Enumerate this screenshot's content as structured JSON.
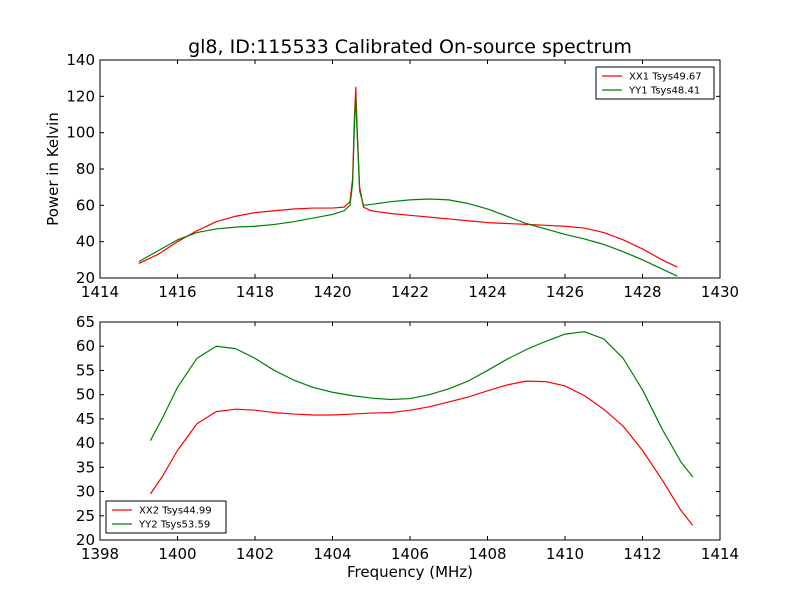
{
  "title": "gl8, ID:115533 Calibrated On-source spectrum",
  "chart_data": [
    {
      "type": "line",
      "ylabel": "Power in Kelvin",
      "xlabel": "",
      "xlim": [
        1414,
        1430
      ],
      "ylim": [
        20,
        140
      ],
      "xticks": [
        1414,
        1416,
        1418,
        1420,
        1422,
        1424,
        1426,
        1428,
        1430
      ],
      "yticks": [
        20,
        40,
        60,
        80,
        100,
        120,
        140
      ],
      "legend_position": "top-right",
      "series": [
        {
          "name": "XX1 Tsys49.67",
          "color": "#ff0000",
          "x": [
            1415.0,
            1415.5,
            1416.0,
            1416.5,
            1417.0,
            1417.5,
            1418.0,
            1418.5,
            1419.0,
            1419.5,
            1420.0,
            1420.3,
            1420.45,
            1420.52,
            1420.56,
            1420.6,
            1420.64,
            1420.7,
            1420.8,
            1421.0,
            1421.5,
            1422.0,
            1422.5,
            1423.0,
            1423.5,
            1424.0,
            1424.5,
            1425.0,
            1425.5,
            1426.0,
            1426.5,
            1427.0,
            1427.5,
            1428.0,
            1428.5,
            1428.9
          ],
          "values": [
            28,
            33,
            40,
            46,
            51,
            54,
            56,
            57,
            58,
            58.5,
            58.5,
            59,
            62,
            75,
            105,
            125,
            100,
            70,
            59,
            57,
            55.5,
            54.5,
            53.5,
            52.5,
            51.5,
            50.5,
            50,
            49.5,
            49,
            48.5,
            47.5,
            45,
            41,
            36,
            30,
            26
          ]
        },
        {
          "name": "YY1 Tsys48.41",
          "color": "#008000",
          "x": [
            1415.0,
            1415.5,
            1416.0,
            1416.5,
            1417.0,
            1417.5,
            1418.0,
            1418.5,
            1419.0,
            1419.5,
            1420.0,
            1420.3,
            1420.45,
            1420.52,
            1420.56,
            1420.6,
            1420.64,
            1420.7,
            1420.8,
            1421.0,
            1421.5,
            1422.0,
            1422.5,
            1423.0,
            1423.5,
            1424.0,
            1424.5,
            1425.0,
            1425.5,
            1426.0,
            1426.5,
            1427.0,
            1427.5,
            1428.0,
            1428.5,
            1428.9
          ],
          "values": [
            29,
            35,
            41,
            45,
            47,
            48,
            48.5,
            49.5,
            51,
            53,
            55,
            57,
            60,
            72,
            100,
            120,
            98,
            68,
            60,
            60.5,
            62,
            63,
            63.5,
            63,
            61,
            58,
            54,
            50,
            47,
            44,
            41.5,
            38.5,
            34.5,
            30,
            25,
            21
          ]
        }
      ]
    },
    {
      "type": "line",
      "ylabel": "",
      "xlabel": "Frequency (MHz)",
      "xlim": [
        1398,
        1414
      ],
      "ylim": [
        20,
        65
      ],
      "xticks": [
        1398,
        1400,
        1402,
        1404,
        1406,
        1408,
        1410,
        1412,
        1414
      ],
      "yticks": [
        20,
        25,
        30,
        35,
        40,
        45,
        50,
        55,
        60,
        65
      ],
      "legend_position": "bottom-left",
      "series": [
        {
          "name": "XX2 Tsys44.99",
          "color": "#ff0000",
          "x": [
            1399.3,
            1399.6,
            1400.0,
            1400.5,
            1401.0,
            1401.5,
            1402.0,
            1402.5,
            1403.0,
            1403.5,
            1404.0,
            1404.5,
            1405.0,
            1405.5,
            1406.0,
            1406.5,
            1407.0,
            1407.5,
            1408.0,
            1408.5,
            1409.0,
            1409.5,
            1410.0,
            1410.5,
            1411.0,
            1411.5,
            1412.0,
            1412.5,
            1413.0,
            1413.3
          ],
          "values": [
            29.5,
            33,
            38.5,
            44,
            46.5,
            47,
            46.8,
            46.3,
            46,
            45.8,
            45.8,
            46,
            46.2,
            46.3,
            46.8,
            47.5,
            48.5,
            49.5,
            50.8,
            52,
            52.8,
            52.7,
            51.8,
            49.8,
            47,
            43.5,
            38.5,
            32.5,
            26,
            23
          ]
        },
        {
          "name": "YY2 Tsys53.59",
          "color": "#008000",
          "x": [
            1399.3,
            1399.6,
            1400.0,
            1400.5,
            1401.0,
            1401.5,
            1402.0,
            1402.5,
            1403.0,
            1403.5,
            1404.0,
            1404.5,
            1405.0,
            1405.5,
            1406.0,
            1406.5,
            1407.0,
            1407.5,
            1408.0,
            1408.5,
            1409.0,
            1409.5,
            1410.0,
            1410.5,
            1411.0,
            1411.5,
            1412.0,
            1412.5,
            1413.0,
            1413.3
          ],
          "values": [
            40.5,
            45,
            51.5,
            57.5,
            60,
            59.5,
            57.5,
            55,
            53,
            51.5,
            50.5,
            49.8,
            49.3,
            49,
            49.2,
            50,
            51.2,
            52.8,
            55,
            57.3,
            59.3,
            61,
            62.5,
            63,
            61.5,
            57.5,
            51,
            43,
            36,
            33
          ]
        }
      ]
    }
  ]
}
